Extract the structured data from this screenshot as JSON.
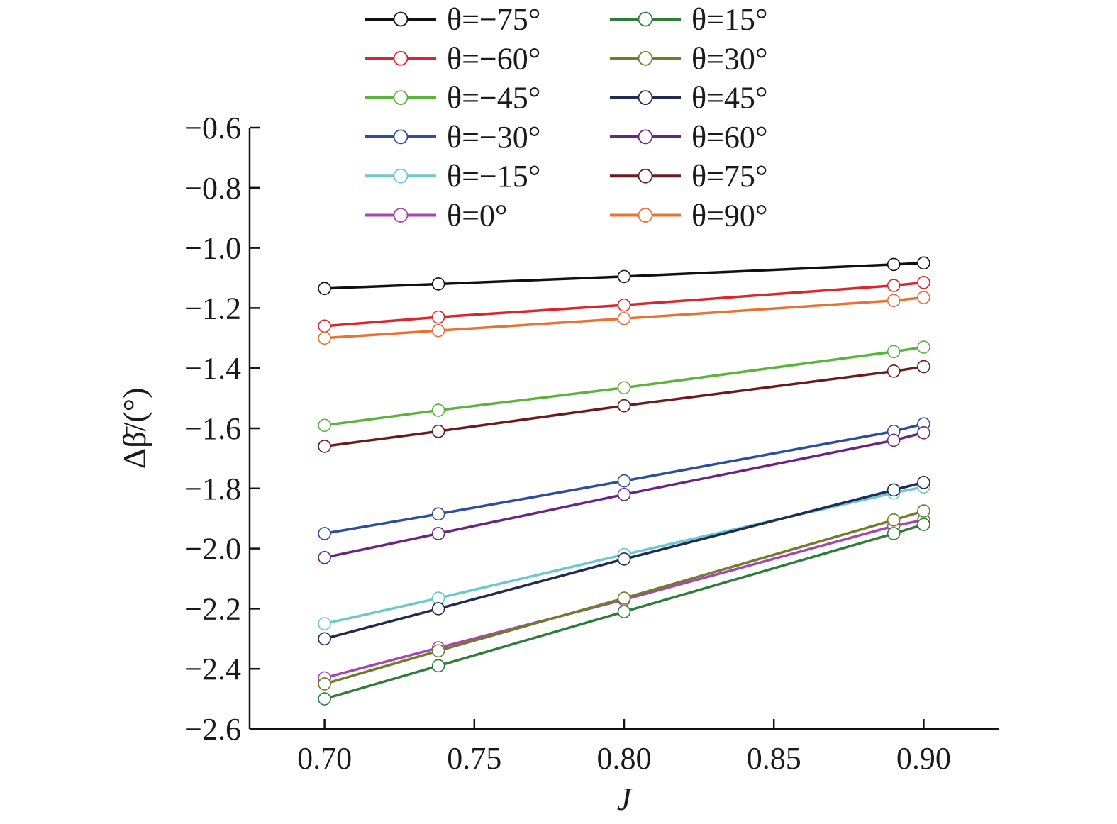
{
  "chart_data": {
    "type": "line",
    "xlabel": "J",
    "ylabel": "Δβ̄/(°)",
    "xlim": [
      0.675,
      0.925
    ],
    "ylim": [
      -2.6,
      -0.6
    ],
    "x_ticks": [
      "0.70",
      "0.75",
      "0.80",
      "0.85",
      "0.90"
    ],
    "x_tick_values": [
      0.7,
      0.75,
      0.8,
      0.85,
      0.9
    ],
    "y_ticks": [
      "−0.6",
      "−0.8",
      "−1.0",
      "−1.2",
      "−1.4",
      "−1.6",
      "−1.8",
      "−2.0",
      "−2.2",
      "−2.4",
      "−2.6"
    ],
    "y_tick_values": [
      -0.6,
      -0.8,
      -1.0,
      -1.2,
      -1.4,
      -1.6,
      -1.8,
      -2.0,
      -2.2,
      -2.4,
      -2.6
    ],
    "grid": false,
    "legend_position": "top, two columns",
    "x": [
      0.7,
      0.738,
      0.8,
      0.89,
      0.9
    ],
    "series": [
      {
        "name": "θ=−75°",
        "color": "#111111",
        "values": [
          -1.135,
          -1.12,
          -1.095,
          -1.055,
          -1.05
        ]
      },
      {
        "name": "θ=−60°",
        "color": "#d8262a",
        "values": [
          -1.26,
          -1.23,
          -1.19,
          -1.125,
          -1.115
        ]
      },
      {
        "name": "θ=−45°",
        "color": "#5ab43c",
        "values": [
          -1.59,
          -1.54,
          -1.465,
          -1.345,
          -1.33
        ]
      },
      {
        "name": "θ=−30°",
        "color": "#2d4e9c",
        "values": [
          -1.95,
          -1.885,
          -1.775,
          -1.61,
          -1.585
        ]
      },
      {
        "name": "θ=−15°",
        "color": "#6cc8cc",
        "values": [
          -2.25,
          -2.165,
          -2.02,
          -1.815,
          -1.795
        ]
      },
      {
        "name": "θ=0°",
        "color": "#a845b0",
        "values": [
          -2.43,
          -2.33,
          -2.17,
          -1.925,
          -1.905
        ]
      },
      {
        "name": "θ=15°",
        "color": "#2f7d3a",
        "values": [
          -2.5,
          -2.39,
          -2.21,
          -1.95,
          -1.92
        ]
      },
      {
        "name": "θ=30°",
        "color": "#707d2a",
        "values": [
          -2.45,
          -2.34,
          -2.165,
          -1.905,
          -1.875
        ]
      },
      {
        "name": "θ=45°",
        "color": "#1f2b55",
        "values": [
          -2.3,
          -2.2,
          -2.035,
          -1.805,
          -1.78
        ]
      },
      {
        "name": "θ=60°",
        "color": "#6b2580",
        "values": [
          -2.03,
          -1.95,
          -1.82,
          -1.64,
          -1.615
        ]
      },
      {
        "name": "θ=75°",
        "color": "#6b1a1e",
        "values": [
          -1.66,
          -1.61,
          -1.525,
          -1.41,
          -1.395
        ]
      },
      {
        "name": "θ=90°",
        "color": "#e57332",
        "values": [
          -1.3,
          -1.275,
          -1.235,
          -1.175,
          -1.165
        ]
      }
    ]
  }
}
